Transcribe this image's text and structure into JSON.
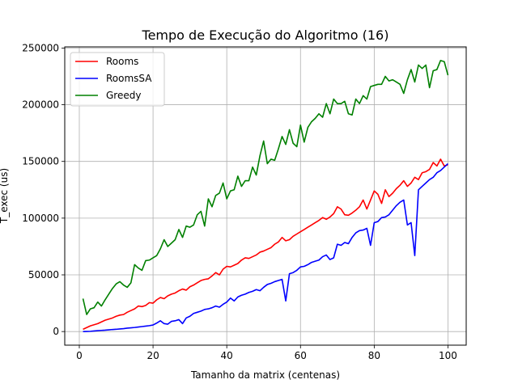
{
  "chart_data": {
    "type": "line",
    "title": "Tempo de Execução do Algoritmo (16)",
    "xlabel": "Tamanho da matrix (centenas)",
    "ylabel": "T_exec (us)",
    "xlim": [
      -3.95,
      104.95
    ],
    "ylim": [
      -12000,
      251000
    ],
    "xticks": [
      0,
      20,
      40,
      60,
      80,
      100
    ],
    "yticks": [
      0,
      50000,
      100000,
      150000,
      200000,
      250000
    ],
    "xtick_labels": [
      "0",
      "20",
      "40",
      "60",
      "80",
      "100"
    ],
    "ytick_labels": [
      "0",
      "50000",
      "100000",
      "150000",
      "200000",
      "250000"
    ],
    "grid": true,
    "legend_position": "top-left",
    "x": [
      1,
      2,
      3,
      4,
      5,
      6,
      7,
      8,
      9,
      10,
      11,
      12,
      13,
      14,
      15,
      16,
      17,
      18,
      19,
      20,
      21,
      22,
      23,
      24,
      25,
      26,
      27,
      28,
      29,
      30,
      31,
      32,
      33,
      34,
      35,
      36,
      37,
      38,
      39,
      40,
      41,
      42,
      43,
      44,
      45,
      46,
      47,
      48,
      49,
      50,
      51,
      52,
      53,
      54,
      55,
      56,
      57,
      58,
      59,
      60,
      61,
      62,
      63,
      64,
      65,
      66,
      67,
      68,
      69,
      70,
      71,
      72,
      73,
      74,
      75,
      76,
      77,
      78,
      79,
      80,
      81,
      82,
      83,
      84,
      85,
      86,
      87,
      88,
      89,
      90,
      91,
      92,
      93,
      94,
      95,
      96,
      97,
      98,
      99,
      100
    ],
    "series": [
      {
        "name": "Rooms",
        "color": "#ff0000",
        "values": [
          2000,
          3500,
          5000,
          6000,
          7000,
          8500,
          10000,
          11000,
          12000,
          13500,
          14500,
          15000,
          17000,
          18500,
          20000,
          22500,
          22000,
          23000,
          25500,
          25000,
          28000,
          30000,
          29000,
          31500,
          33000,
          34000,
          36000,
          37500,
          36500,
          39500,
          41000,
          43000,
          45000,
          46000,
          46500,
          49000,
          52000,
          50000,
          55000,
          57500,
          57000,
          58500,
          60000,
          63000,
          65000,
          64500,
          66000,
          67500,
          70000,
          71000,
          72500,
          74000,
          77000,
          79000,
          83000,
          80000,
          81000,
          84000,
          86000,
          88000,
          90000,
          92000,
          94000,
          96000,
          98000,
          100500,
          99000,
          101000,
          104000,
          110000,
          108000,
          103000,
          102500,
          104500,
          107000,
          110000,
          116000,
          108000,
          116000,
          124000,
          121000,
          113000,
          125000,
          119000,
          122000,
          126000,
          129000,
          133000,
          128000,
          131000,
          136000,
          134000,
          140000,
          141000,
          143000,
          149000,
          146000,
          152000,
          146000,
          147000
        ]
      },
      {
        "name": "RoomsSA",
        "color": "#0000ff",
        "values": [
          0,
          100,
          200,
          500,
          800,
          1000,
          1200,
          1500,
          1800,
          2000,
          2300,
          2600,
          3000,
          3300,
          3600,
          4000,
          4400,
          4800,
          5200,
          5800,
          7500,
          9500,
          7000,
          6500,
          9000,
          9500,
          10500,
          7000,
          12000,
          13500,
          16000,
          17000,
          18000,
          19500,
          20000,
          21000,
          22500,
          21500,
          24000,
          26000,
          29500,
          27000,
          30500,
          32000,
          33000,
          34500,
          35500,
          37000,
          36000,
          39000,
          41500,
          42500,
          44000,
          45000,
          46000,
          27000,
          51000,
          52000,
          54000,
          57000,
          57500,
          59000,
          61000,
          62000,
          63000,
          66000,
          67500,
          63500,
          65000,
          77000,
          76000,
          78500,
          77500,
          83000,
          87000,
          89000,
          89500,
          91000,
          76000,
          96000,
          97000,
          100500,
          101000,
          103000,
          107000,
          111000,
          114000,
          116000,
          94000,
          96000,
          67000,
          125000,
          128000,
          131000,
          134000,
          136000,
          140000,
          142000,
          145000,
          148000
        ]
      },
      {
        "name": "Greedy",
        "color": "#008000",
        "values": [
          29000,
          15000,
          20000,
          21000,
          26000,
          22500,
          28000,
          33000,
          38000,
          42000,
          44000,
          41000,
          39000,
          43000,
          59000,
          56000,
          54000,
          62500,
          63000,
          65000,
          67000,
          73000,
          81000,
          75000,
          78000,
          81000,
          90000,
          83000,
          93000,
          92000,
          94000,
          103000,
          106000,
          93000,
          117000,
          110000,
          120000,
          122000,
          131000,
          117000,
          124000,
          125000,
          137000,
          128000,
          133000,
          133000,
          145000,
          138000,
          155000,
          168000,
          148000,
          152000,
          151000,
          161000,
          172000,
          165000,
          178000,
          166000,
          163000,
          182000,
          167000,
          180000,
          185000,
          188000,
          192000,
          189000,
          201000,
          192000,
          205000,
          201000,
          201000,
          203000,
          192000,
          191000,
          205000,
          201000,
          208000,
          205000,
          216000,
          217000,
          218000,
          218000,
          225000,
          221000,
          222000,
          220000,
          218000,
          210000,
          222000,
          231000,
          220000,
          235000,
          232000,
          235000,
          215000,
          230000,
          231000,
          239000,
          238000,
          226000
        ]
      }
    ]
  }
}
